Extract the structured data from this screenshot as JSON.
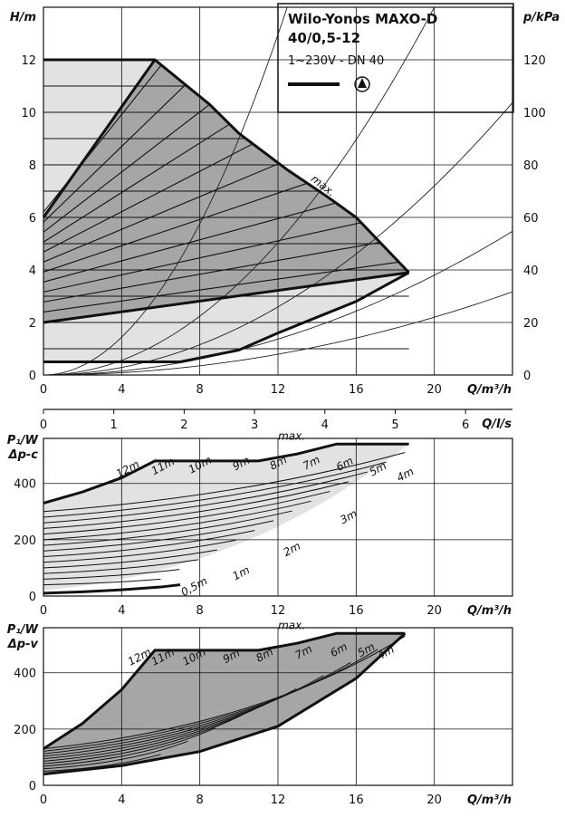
{
  "title_line1": "Wilo-Yonos MAXO-D",
  "title_line2": "40/0,5-12",
  "subtitle": "1~230V - DN 40",
  "max_label": "max.",
  "chart_data": [
    {
      "type": "line",
      "name": "head",
      "ylabel": "H/m",
      "y2label": "p/kPa",
      "xlabel": "Q/m³/h",
      "xlim": [
        0,
        24
      ],
      "ylim": [
        0,
        14
      ],
      "y2lim": [
        0,
        140
      ],
      "xticks": [
        0,
        4,
        8,
        12,
        16,
        20
      ],
      "yticks": [
        0,
        2,
        4,
        6,
        8,
        10,
        12
      ],
      "y2ticks": [
        0,
        20,
        40,
        60,
        80,
        100,
        120
      ],
      "series": [
        {
          "name": "max.",
          "x": [
            0,
            5.7,
            8.5,
            10,
            12.5,
            14.5,
            16,
            18.7
          ],
          "y": [
            12,
            12,
            10.3,
            9.2,
            7.8,
            6.8,
            6.0,
            3.9
          ]
        },
        {
          "name": "min",
          "x": [
            0,
            7,
            10,
            12,
            14,
            16,
            18.7
          ],
          "y": [
            0.5,
            0.5,
            0.95,
            1.6,
            2.2,
            2.8,
            3.9
          ]
        },
        {
          "name": "dp-v max",
          "x": [
            0,
            5.7
          ],
          "y": [
            6,
            12
          ]
        },
        {
          "name": "dp-v min",
          "x": [
            0,
            18.7
          ],
          "y": [
            2,
            3.9
          ]
        }
      ],
      "constant_lines_m": [
        1,
        2,
        3,
        4,
        5,
        6,
        7,
        8,
        9,
        10,
        11,
        12
      ]
    },
    {
      "type": "line",
      "name": "power dp-c",
      "ylabel_top": "P₁/W",
      "ylabel_bottom": "Δp-c",
      "xlabel": "Q/m³/h",
      "x2label": "Q/l/s",
      "xlim": [
        0,
        24
      ],
      "ylim": [
        0,
        560
      ],
      "xticks": [
        0,
        4,
        8,
        12,
        16,
        20
      ],
      "x2ticks": [
        0,
        1,
        2,
        3,
        4,
        5,
        6
      ],
      "yticks": [
        0,
        200,
        400
      ],
      "curve_labels": [
        "12m",
        "11m",
        "10m",
        "9m",
        "8m",
        "7m",
        "6m",
        "5m",
        "4m",
        "3m",
        "2m",
        "1m",
        "0,5m"
      ],
      "series": [
        {
          "name": "max.",
          "x": [
            0,
            2,
            4,
            5.7,
            11,
            13,
            15,
            18.7
          ],
          "y": [
            330,
            370,
            420,
            480,
            480,
            505,
            540,
            540
          ]
        },
        {
          "name": "0,5m",
          "x": [
            0,
            2,
            4,
            6,
            7
          ],
          "y": [
            10,
            15,
            22,
            32,
            40
          ]
        }
      ]
    },
    {
      "type": "line",
      "name": "power dp-v",
      "ylabel_top": "P₁/W",
      "ylabel_bottom": "Δp-v",
      "xlabel": "Q/m³/h",
      "xlim": [
        0,
        24
      ],
      "ylim": [
        0,
        560
      ],
      "xticks": [
        0,
        4,
        8,
        12,
        16,
        20
      ],
      "yticks": [
        0,
        200,
        400
      ],
      "curve_labels": [
        "12m",
        "11m",
        "10m",
        "9m",
        "8m",
        "7m",
        "6m",
        "5m",
        "4m"
      ],
      "series": [
        {
          "name": "max.",
          "x": [
            0,
            2,
            4,
            5.7,
            11,
            13,
            15,
            18.5
          ],
          "y": [
            130,
            220,
            340,
            480,
            480,
            505,
            540,
            540
          ]
        },
        {
          "name": "min",
          "x": [
            0,
            4,
            8,
            12,
            16,
            18.5
          ],
          "y": [
            40,
            70,
            120,
            210,
            380,
            540
          ]
        }
      ]
    }
  ]
}
